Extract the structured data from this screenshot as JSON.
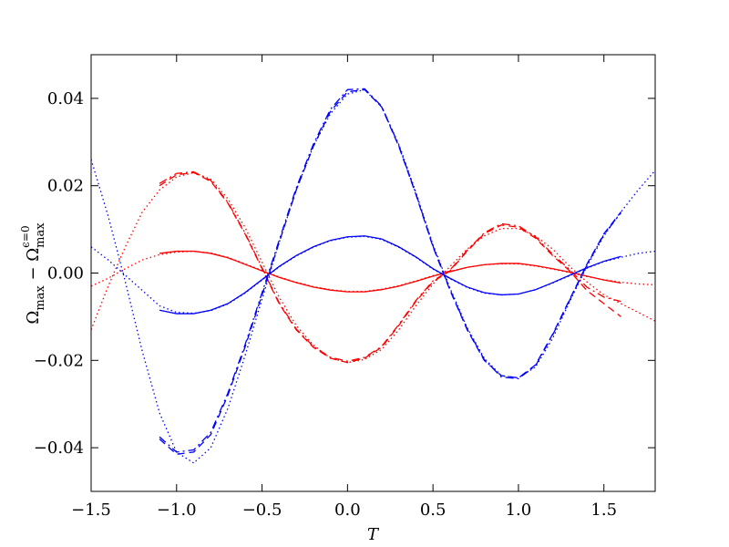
{
  "chart_data": {
    "type": "line",
    "xlabel": "T",
    "ylabel": [
      "Ω",
      "max",
      " − Ω",
      "max",
      "ϵ=0"
    ],
    "xlim": [
      -1.5,
      1.8
    ],
    "ylim": [
      -0.05,
      0.05
    ],
    "xticks": [
      {
        "value": -1.5,
        "label": "−1.5"
      },
      {
        "value": -1.0,
        "label": "−1.0"
      },
      {
        "value": -0.5,
        "label": "−0.5"
      },
      {
        "value": 0,
        "label": "0.0"
      },
      0.5,
      {
        "value": 1,
        "label": "1.0"
      },
      1.5
    ],
    "yticks": [
      {
        "value": -0.04,
        "label": "−0.04"
      },
      {
        "value": -0.02,
        "label": "−0.02"
      },
      {
        "value": 0,
        "label": "0.00"
      },
      0.02,
      0.04
    ],
    "x": [
      -1.5,
      -1.4,
      -1.3,
      -1.2,
      -1.1,
      -1.0,
      -0.9,
      -0.8,
      -0.7,
      -0.6,
      -0.5,
      -0.4,
      -0.3,
      -0.2,
      -0.1,
      0.0,
      0.1,
      0.2,
      0.3,
      0.4,
      0.5,
      0.6,
      0.7,
      0.8,
      0.9,
      1.0,
      1.1,
      1.2,
      1.3,
      1.4,
      1.5,
      1.6,
      1.7,
      1.8
    ],
    "series": [
      {
        "color": "#ff0000",
        "linestyle": "solid",
        "values": [
          null,
          null,
          null,
          null,
          0.0045,
          0.005,
          0.005,
          0.0045,
          0.0035,
          0.002,
          0.0005,
          -0.001,
          -0.0022,
          -0.0032,
          -0.0039,
          -0.0043,
          -0.0043,
          -0.0038,
          -0.003,
          -0.0019,
          -0.0007,
          0.0003,
          0.0013,
          0.0019,
          0.0022,
          0.0022,
          0.0017,
          0.001,
          0.0002,
          -0.0007,
          -0.0016,
          -0.0023,
          null,
          null
        ]
      },
      {
        "color": "#ff0000",
        "linestyle": "dotted",
        "values": [
          -0.003,
          -0.0012,
          0.001,
          0.003,
          0.0042,
          0.0048,
          0.005,
          0.0046,
          0.0036,
          0.0021,
          0.0006,
          -0.0009,
          -0.0021,
          -0.0031,
          -0.0038,
          -0.0042,
          -0.0042,
          -0.0037,
          -0.0029,
          -0.0018,
          -0.0006,
          0.0004,
          0.0013,
          0.0019,
          0.0021,
          0.0021,
          0.0016,
          0.0009,
          0.0001,
          -0.0008,
          -0.0015,
          -0.0021,
          -0.0025,
          -0.0027
        ]
      },
      {
        "color": "#ff0000",
        "linestyle": "dashed",
        "values": [
          null,
          null,
          null,
          null,
          0.02,
          0.0225,
          0.023,
          0.021,
          0.016,
          0.009,
          0.001,
          -0.007,
          -0.013,
          -0.017,
          -0.0195,
          -0.0205,
          -0.0195,
          -0.017,
          -0.012,
          -0.0065,
          -0.002,
          0.0005,
          0.005,
          0.009,
          0.011,
          0.0105,
          0.008,
          0.004,
          0.0005,
          -0.004,
          -0.007,
          -0.01,
          null,
          null
        ]
      },
      {
        "color": "#ff0000",
        "linestyle": "dashdot",
        "values": [
          null,
          null,
          null,
          null,
          0.0205,
          0.0228,
          0.0232,
          0.0212,
          0.0162,
          0.0092,
          0.0012,
          -0.0068,
          -0.0128,
          -0.0168,
          -0.0193,
          -0.0202,
          -0.0193,
          -0.0168,
          -0.0118,
          -0.0063,
          -0.0018,
          0.0007,
          0.0052,
          0.0092,
          0.0113,
          0.0108,
          0.0083,
          0.0043,
          0.0008,
          -0.0032,
          -0.0055,
          -0.0065,
          null,
          null
        ]
      },
      {
        "color": "#ff0000",
        "linestyle": "dotted",
        "values": [
          -0.013,
          -0.003,
          0.006,
          0.014,
          0.019,
          0.022,
          0.023,
          0.0215,
          0.017,
          0.0105,
          0.0025,
          -0.0055,
          -0.012,
          -0.0165,
          -0.0195,
          -0.0205,
          -0.0198,
          -0.0175,
          -0.013,
          -0.0075,
          -0.0025,
          0.0015,
          0.0055,
          0.0085,
          0.0102,
          0.0102,
          0.0085,
          0.0055,
          0.0015,
          -0.002,
          -0.005,
          -0.007,
          -0.009,
          -0.011
        ]
      },
      {
        "color": "#0000ff",
        "linestyle": "solid",
        "values": [
          null,
          null,
          null,
          null,
          -0.0085,
          -0.0093,
          -0.0093,
          -0.0085,
          -0.007,
          -0.0045,
          -0.0015,
          0.0015,
          0.004,
          0.006,
          0.0075,
          0.0083,
          0.0085,
          0.0078,
          0.006,
          0.0037,
          0.001,
          -0.0012,
          -0.0032,
          -0.0045,
          -0.005,
          -0.0048,
          -0.0038,
          -0.0022,
          -0.0005,
          0.0012,
          0.0027,
          0.0038,
          null,
          null
        ]
      },
      {
        "color": "#0000ff",
        "linestyle": "dotted",
        "values": [
          0.006,
          0.003,
          -0.0005,
          -0.004,
          -0.0075,
          -0.009,
          -0.0092,
          -0.0086,
          -0.0071,
          -0.0046,
          -0.0016,
          0.0014,
          0.0039,
          0.0059,
          0.0074,
          0.0082,
          0.0084,
          0.0077,
          0.0059,
          0.0036,
          0.0009,
          -0.0013,
          -0.0033,
          -0.0046,
          -0.005,
          -0.0048,
          -0.0038,
          -0.0023,
          -0.0006,
          0.0011,
          0.0026,
          0.0036,
          0.0045,
          0.005
        ]
      },
      {
        "color": "#0000ff",
        "linestyle": "dashed",
        "values": [
          null,
          null,
          null,
          null,
          -0.038,
          -0.0415,
          -0.041,
          -0.037,
          -0.028,
          -0.017,
          -0.005,
          0.007,
          0.019,
          0.029,
          0.037,
          0.0415,
          0.042,
          0.038,
          0.029,
          0.018,
          0.006,
          -0.004,
          -0.013,
          -0.02,
          -0.0235,
          -0.024,
          -0.021,
          -0.014,
          -0.006,
          0.002,
          0.009,
          0.014,
          null,
          null
        ]
      },
      {
        "color": "#0000ff",
        "linestyle": "dashdot",
        "values": [
          null,
          null,
          null,
          null,
          -0.0375,
          -0.041,
          -0.0405,
          -0.0365,
          -0.0275,
          -0.0165,
          -0.0045,
          0.0075,
          0.0195,
          0.0295,
          0.0375,
          0.042,
          0.0422,
          0.0382,
          0.0292,
          0.0182,
          0.0062,
          -0.0038,
          -0.0128,
          -0.0198,
          -0.0238,
          -0.0242,
          -0.0212,
          -0.0142,
          -0.0062,
          0.0018,
          0.0088,
          0.0138,
          null,
          null
        ]
      },
      {
        "color": "#0000ff",
        "linestyle": "dotted",
        "values": [
          0.026,
          0.013,
          -0.002,
          -0.018,
          -0.032,
          -0.041,
          -0.0435,
          -0.04,
          -0.031,
          -0.019,
          -0.006,
          0.007,
          0.019,
          0.029,
          0.0365,
          0.041,
          0.042,
          0.038,
          0.0295,
          0.0185,
          0.0065,
          -0.0035,
          -0.0125,
          -0.0195,
          -0.0235,
          -0.024,
          -0.0215,
          -0.015,
          -0.0065,
          0.0015,
          0.0085,
          0.014,
          0.019,
          0.0235
        ]
      }
    ]
  }
}
